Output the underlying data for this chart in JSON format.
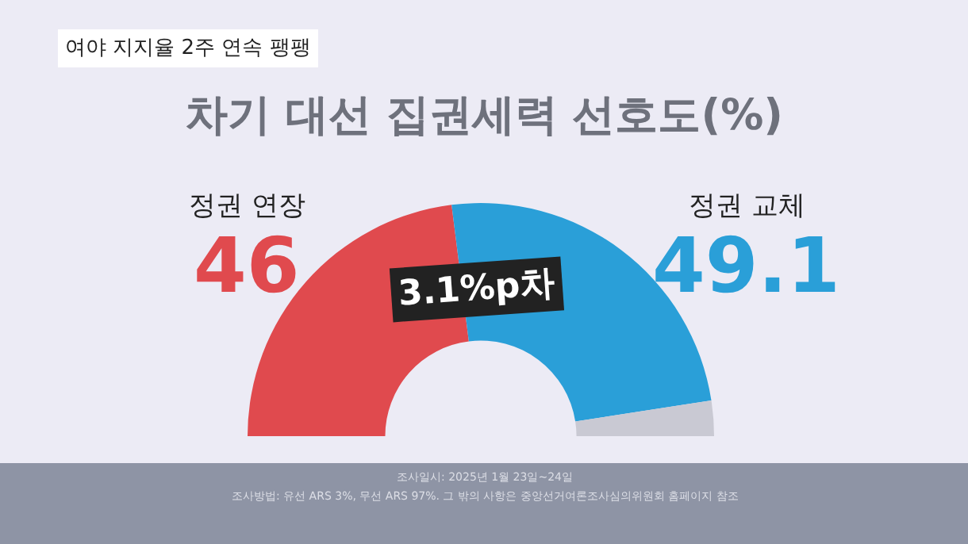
{
  "chart_data": {
    "type": "donut",
    "title": "차기 대선 집권세력 선호도(%)",
    "categories": [
      "정권 연장",
      "정권 교체",
      null
    ],
    "values": [
      46,
      49.1,
      4.9
    ],
    "colors": [
      "#e04a4e",
      "#2a9fd8",
      "#c9c9d3"
    ],
    "value_labels": [
      "46",
      "49.1",
      null
    ],
    "annotations": [
      "여야 지지율 2주 연속 팽팽",
      "3.1%p차",
      "조사일시: 2025년 1월 23일~24일",
      "조사방법: 유선 ARS 3%, 무선 ARS 97%. 그 밖의 사항은 중앙선거여론조사심의위원회 홈페이지 참조"
    ]
  }
}
